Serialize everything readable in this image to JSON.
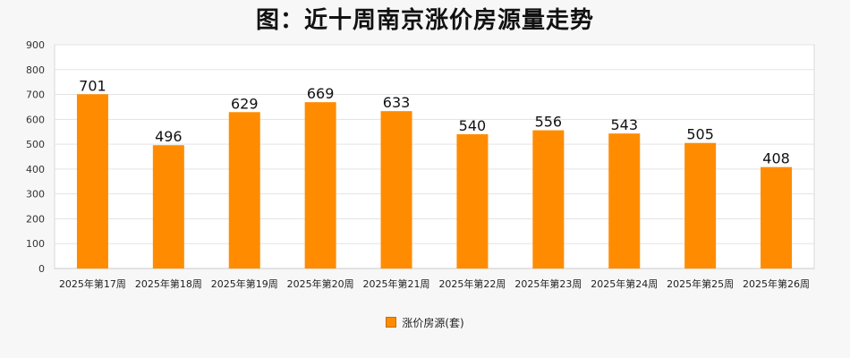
{
  "chart_data": {
    "type": "bar",
    "title": "图：近十周南京涨价房源量走势",
    "categories": [
      "2025年第17周",
      "2025年第18周",
      "2025年第19周",
      "2025年第20周",
      "2025年第21周",
      "2025年第22周",
      "2025年第23周",
      "2025年第24周",
      "2025年第25周",
      "2025年第26周"
    ],
    "series": [
      {
        "name": "涨价房源(套)",
        "values": [
          701,
          496,
          629,
          669,
          633,
          540,
          556,
          543,
          505,
          408
        ],
        "color": "#ff8c00"
      }
    ],
    "ylim": [
      0,
      900
    ],
    "yticks": [
      "0",
      "100",
      "200",
      "300",
      "400",
      "500",
      "600",
      "700",
      "800",
      "900"
    ],
    "grid": true,
    "data_labels": true,
    "legend_position": "bottom"
  }
}
